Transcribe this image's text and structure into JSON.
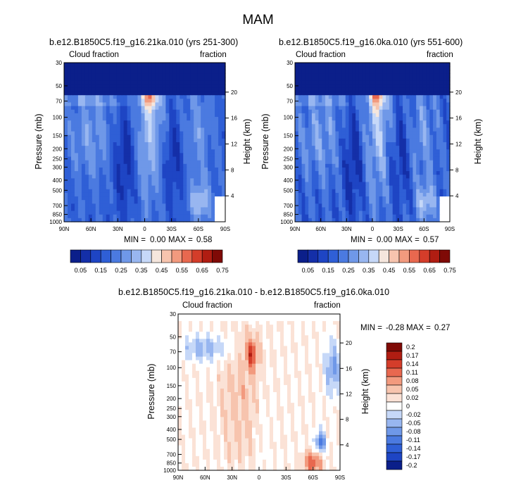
{
  "figure_title": "MAM",
  "chart_data": [
    {
      "type": "heatmap",
      "title": "b.e12.B1850C5.f19_g16.21ka.010 (yrs 251-300)",
      "left_string": "Cloud fraction",
      "right_string": "fraction",
      "xlabel": "",
      "ylabel": "Pressure (mb)",
      "y2label": "Height (km)",
      "x_ticks": [
        "90N",
        "60N",
        "30N",
        "0",
        "30S",
        "60S",
        "90S"
      ],
      "y_ticks": [
        "30",
        "50",
        "70",
        "100",
        "150",
        "200",
        "250",
        "300",
        "400",
        "500",
        "700",
        "850",
        "1000"
      ],
      "y2_ticks": [
        "20",
        "16",
        "12",
        "8",
        "4"
      ],
      "stats": {
        "min_label": "MIN =",
        "min": "0.00",
        "max_label": "MAX =",
        "max": "0.58"
      },
      "colorbar_labels": [
        "0.05",
        "0.15",
        "0.25",
        "0.35",
        "0.45",
        "0.55",
        "0.65",
        "0.75"
      ]
    },
    {
      "type": "heatmap",
      "title": "b.e12.B1850C5.f19_g16.0ka.010 (yrs 551-600)",
      "left_string": "Cloud fraction",
      "right_string": "fraction",
      "xlabel": "",
      "ylabel": "Pressure (mb)",
      "y2label": "Height (km)",
      "x_ticks": [
        "90N",
        "60N",
        "30N",
        "0",
        "30S",
        "60S",
        "90S"
      ],
      "y_ticks": [
        "30",
        "50",
        "70",
        "100",
        "150",
        "200",
        "250",
        "300",
        "400",
        "500",
        "700",
        "850",
        "1000"
      ],
      "y2_ticks": [
        "20",
        "16",
        "12",
        "8",
        "4"
      ],
      "stats": {
        "min_label": "MIN =",
        "min": "0.00",
        "max_label": "MAX =",
        "max": "0.57"
      },
      "colorbar_labels": [
        "0.05",
        "0.15",
        "0.25",
        "0.35",
        "0.45",
        "0.55",
        "0.65",
        "0.75"
      ]
    },
    {
      "type": "heatmap",
      "title": "b.e12.B1850C5.f19_g16.21ka.010 - b.e12.B1850C5.f19_g16.0ka.010",
      "left_string": "Cloud fraction",
      "right_string": "fraction",
      "xlabel": "",
      "ylabel": "Pressure (mb)",
      "y2label": "Height (km)",
      "x_ticks": [
        "90N",
        "60N",
        "30N",
        "0",
        "30S",
        "60S",
        "90S"
      ],
      "y_ticks": [
        "30",
        "50",
        "70",
        "100",
        "150",
        "200",
        "250",
        "300",
        "400",
        "500",
        "700",
        "850",
        "1000"
      ],
      "y2_ticks": [
        "20",
        "16",
        "12",
        "8",
        "4"
      ],
      "stats": {
        "min_label": "MIN =",
        "min": "-0.28",
        "max_label": "MAX =",
        "max": "0.27"
      },
      "colorbar_labels": [
        "0.2",
        "0.17",
        "0.14",
        "0.11",
        "0.08",
        "0.05",
        "0.02",
        "0",
        "-0.02",
        "-0.05",
        "-0.08",
        "-0.11",
        "-0.14",
        "-0.17",
        "-0.2"
      ]
    }
  ],
  "colors": {
    "seq": [
      "#0b1f8a",
      "#142fa8",
      "#1e45c4",
      "#2f5fd6",
      "#4b7ae0",
      "#6f98e8",
      "#98b6f0",
      "#c6d8f8",
      "#f5e6dd",
      "#f7c4ae",
      "#f29a7e",
      "#e8684f",
      "#d43d2a",
      "#b01d12",
      "#7f0a06"
    ],
    "div": [
      "#7f0a06",
      "#b01d12",
      "#d43d2a",
      "#e8684f",
      "#f29a7e",
      "#f7c4ae",
      "#fbe2d6",
      "#ffffff",
      "#c6d8f8",
      "#98b6f0",
      "#6f98e8",
      "#4b7ae0",
      "#2f5fd6",
      "#1e45c4",
      "#0b1f8a"
    ]
  }
}
